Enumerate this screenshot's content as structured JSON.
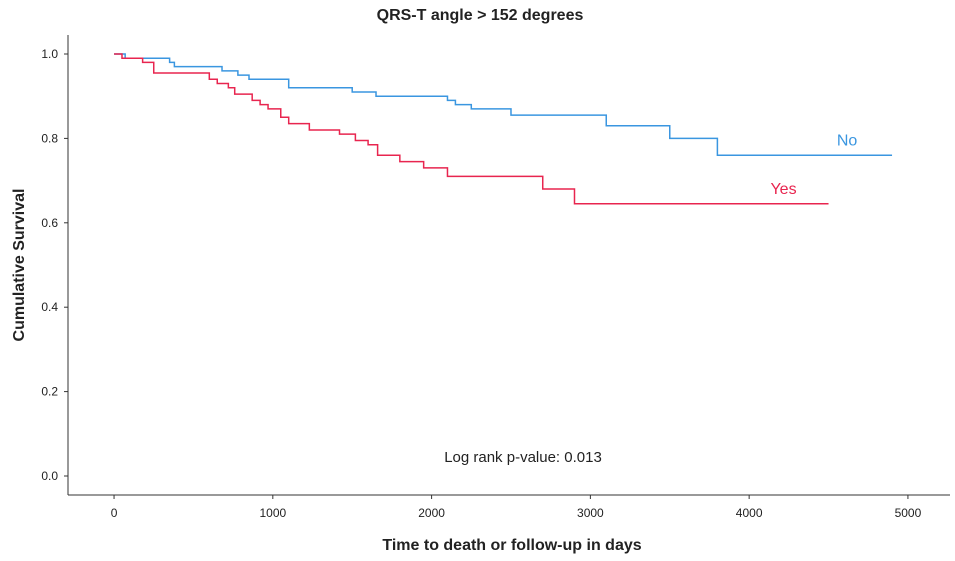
{
  "chart_data": {
    "type": "step-line",
    "title": "QRS-T angle > 152 degrees",
    "x_label": "Time to death or follow-up in days",
    "y_label": "Cumulative Survival",
    "annotation": "Log rank p-value: 0.013",
    "xlim": [
      -290,
      5265
    ],
    "ylim": [
      -0.045,
      1.045
    ],
    "xticks": [
      0,
      1000,
      2000,
      3000,
      4000,
      5000
    ],
    "yticks": [
      {
        "value": 0,
        "label": "0.0"
      },
      0.2,
      0.4,
      0.6,
      0.8,
      {
        "value": 1,
        "label": "1.0"
      }
    ],
    "series": [
      {
        "name": "No",
        "color": "#3a96e0",
        "x": [
          0,
          70,
          350,
          380,
          680,
          780,
          850,
          1100,
          1500,
          1650,
          2100,
          2150,
          2250,
          2500,
          3100,
          3500,
          3800,
          4900
        ],
        "values": [
          1.0,
          0.99,
          0.98,
          0.97,
          0.96,
          0.95,
          0.94,
          0.92,
          0.91,
          0.9,
          0.89,
          0.88,
          0.87,
          0.855,
          0.83,
          0.8,
          0.76,
          0.76
        ]
      },
      {
        "name": "Yes",
        "color": "#e8254f",
        "x": [
          0,
          50,
          180,
          250,
          600,
          650,
          720,
          760,
          870,
          920,
          970,
          1050,
          1100,
          1230,
          1420,
          1520,
          1600,
          1660,
          1800,
          1950,
          2100,
          2700,
          2900,
          4500
        ],
        "values": [
          1.0,
          0.99,
          0.98,
          0.955,
          0.94,
          0.93,
          0.92,
          0.905,
          0.89,
          0.88,
          0.87,
          0.85,
          0.835,
          0.82,
          0.81,
          0.795,
          0.785,
          0.76,
          0.745,
          0.73,
          0.71,
          0.68,
          0.645,
          0.645
        ]
      }
    ]
  }
}
